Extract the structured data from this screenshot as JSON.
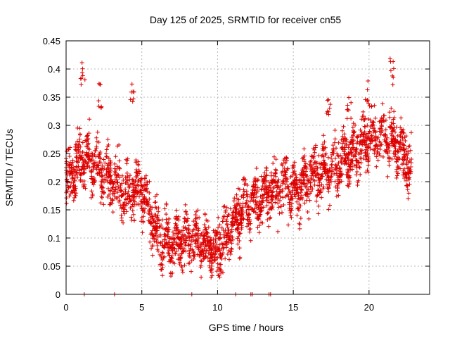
{
  "chart_data": {
    "type": "scatter",
    "title": "Day 125 of 2025, SRMTID for receiver cn55",
    "xlabel": "GPS time / hours",
    "ylabel": "SRMTID / TECUs",
    "xlim": [
      0,
      24
    ],
    "ylim": [
      0,
      0.45
    ],
    "xticks": [
      "0",
      "5",
      "10",
      "15",
      "20"
    ],
    "yticks": [
      "0",
      "0.05",
      "0.1",
      "0.15",
      "0.2",
      "0.25",
      "0.3",
      "0.35",
      "0.4",
      "0.45"
    ],
    "grid": true,
    "marker": "plus",
    "color": "#dd0000",
    "trend": [
      {
        "x": 0.0,
        "y": 0.2
      },
      {
        "x": 1.0,
        "y": 0.24
      },
      {
        "x": 2.0,
        "y": 0.23
      },
      {
        "x": 3.0,
        "y": 0.2
      },
      {
        "x": 4.0,
        "y": 0.18
      },
      {
        "x": 5.0,
        "y": 0.19
      },
      {
        "x": 6.0,
        "y": 0.1
      },
      {
        "x": 7.0,
        "y": 0.09
      },
      {
        "x": 8.0,
        "y": 0.1
      },
      {
        "x": 9.0,
        "y": 0.09
      },
      {
        "x": 10.0,
        "y": 0.08
      },
      {
        "x": 11.0,
        "y": 0.13
      },
      {
        "x": 12.0,
        "y": 0.16
      },
      {
        "x": 13.0,
        "y": 0.17
      },
      {
        "x": 14.0,
        "y": 0.19
      },
      {
        "x": 15.0,
        "y": 0.19
      },
      {
        "x": 16.0,
        "y": 0.2
      },
      {
        "x": 17.0,
        "y": 0.22
      },
      {
        "x": 18.0,
        "y": 0.23
      },
      {
        "x": 19.0,
        "y": 0.25
      },
      {
        "x": 20.0,
        "y": 0.28
      },
      {
        "x": 21.0,
        "y": 0.28
      },
      {
        "x": 22.0,
        "y": 0.26
      },
      {
        "x": 22.8,
        "y": 0.22
      }
    ],
    "peaks": [
      {
        "x": 1.1,
        "y": 0.42
      },
      {
        "x": 2.2,
        "y": 0.38
      },
      {
        "x": 4.4,
        "y": 0.38
      },
      {
        "x": 17.3,
        "y": 0.36
      },
      {
        "x": 18.7,
        "y": 0.35
      },
      {
        "x": 19.9,
        "y": 0.38
      },
      {
        "x": 21.5,
        "y": 0.42
      }
    ],
    "zero_points": [
      {
        "x": 1.2,
        "y": 0
      },
      {
        "x": 3.2,
        "y": 0
      },
      {
        "x": 8.3,
        "y": 0
      },
      {
        "x": 11.2,
        "y": 0
      },
      {
        "x": 12.2,
        "y": 0
      },
      {
        "x": 12.3,
        "y": 0
      },
      {
        "x": 13.4,
        "y": 0
      },
      {
        "x": 13.5,
        "y": 0
      }
    ],
    "point_count": 2600
  }
}
